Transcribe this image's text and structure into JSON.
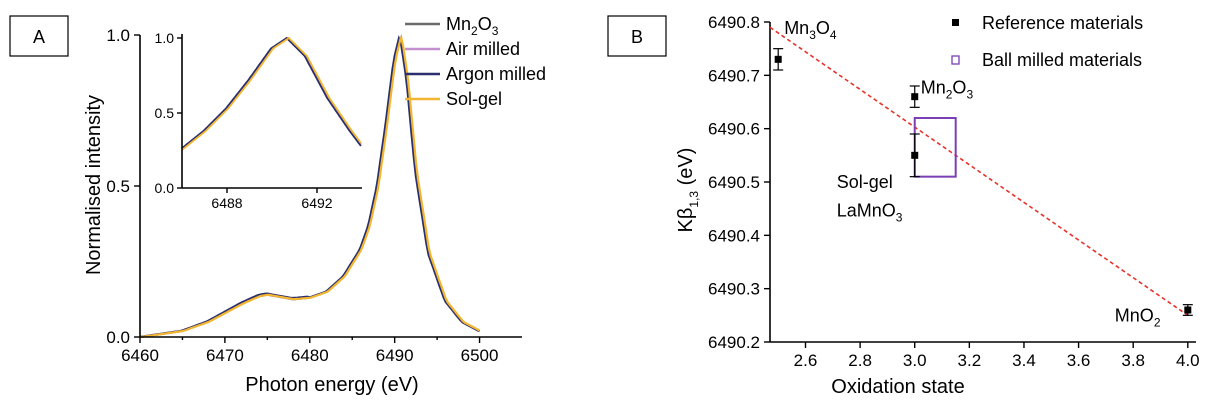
{
  "chart_data": [
    {
      "panel": "A",
      "type": "line",
      "xlabel": "Photon energy (eV)",
      "ylabel": "Normalised intensity",
      "xlim": [
        6460,
        6505
      ],
      "ylim": [
        0,
        1.0
      ],
      "xticks": [
        "6460",
        "6470",
        "6480",
        "6490",
        "6500"
      ],
      "yticks": [
        "0.0",
        "0.5",
        "1.0"
      ],
      "legend": "top-right",
      "series": [
        {
          "name": "Mn2O3",
          "label_main": "Mn",
          "label_sub1": "2",
          "label_mid": "O",
          "label_sub2": "3",
          "color": "#6b6b6b",
          "peak": 6490.7
        },
        {
          "name": "Air milled",
          "color": "#c38fcf",
          "peak": 6490.7
        },
        {
          "name": "Argon milled",
          "color": "#2a2f6e",
          "peak": 6490.6
        },
        {
          "name": "Sol-gel",
          "color": "#f2b630",
          "peak": 6490.8
        }
      ],
      "curve": {
        "x": [
          6460,
          6465,
          6468,
          6470,
          6472,
          6474,
          6475,
          6476,
          6478,
          6480,
          6482,
          6484,
          6486,
          6487,
          6488,
          6489,
          6490,
          6490.7,
          6491.5,
          6492.5,
          6494,
          6496,
          6498,
          6500
        ],
        "y": [
          0.0,
          0.02,
          0.05,
          0.08,
          0.11,
          0.135,
          0.14,
          0.135,
          0.125,
          0.13,
          0.15,
          0.2,
          0.29,
          0.37,
          0.5,
          0.7,
          0.92,
          1.0,
          0.85,
          0.55,
          0.28,
          0.12,
          0.05,
          0.02
        ]
      },
      "inset": {
        "xlim": [
          6486,
          6494
        ],
        "ylim": [
          0,
          1.0
        ],
        "xticks": [
          "6488",
          "6492"
        ],
        "yticks": [
          "0.0",
          "0.5",
          "1.0"
        ],
        "curve": {
          "x": [
            6486,
            6487,
            6488,
            6489,
            6490,
            6490.7,
            6491.5,
            6492.5,
            6493.5,
            6494
          ],
          "y": [
            0.26,
            0.38,
            0.53,
            0.72,
            0.93,
            1.0,
            0.88,
            0.6,
            0.38,
            0.28
          ]
        }
      }
    },
    {
      "panel": "B",
      "type": "scatter",
      "xlabel": "Oxidation state",
      "ylabel_main": "Kβ",
      "ylabel_sub": "1,3",
      "ylabel_tail": " (eV)",
      "xlim": [
        2.47,
        4.03
      ],
      "ylim": [
        6490.2,
        6490.8
      ],
      "xticks": [
        "2.6",
        "2.8",
        "3.0",
        "3.2",
        "3.4",
        "3.6",
        "3.8",
        "4.0"
      ],
      "yticks": [
        "6490.2",
        "6490.3",
        "6490.4",
        "6490.5",
        "6490.6",
        "6490.7",
        "6490.8"
      ],
      "legend": "top-right",
      "legend_entries": [
        "Reference materials",
        "Ball milled materials"
      ],
      "reference": [
        {
          "x": 2.5,
          "y": 6490.73,
          "err": 0.02
        },
        {
          "x": 3.0,
          "y": 6490.66,
          "err": 0.02
        },
        {
          "x": 3.0,
          "y": 6490.55,
          "err": 0.04
        },
        {
          "x": 4.0,
          "y": 6490.26,
          "err": 0.01
        }
      ],
      "ball_milled_box": {
        "x0": 3.0,
        "x1": 3.15,
        "y0": 6490.51,
        "y1": 6490.62
      },
      "fit_line": {
        "x": [
          2.47,
          4.0
        ],
        "y": [
          6490.79,
          6490.25
        ],
        "color": "#e8332a"
      },
      "annotations": [
        {
          "a": "Mn",
          "s1": "3",
          "b": "O",
          "s2": "4"
        },
        {
          "a": "Mn",
          "s1": "2",
          "b": "O",
          "s2": "3"
        },
        {
          "a": "Sol-gel"
        },
        {
          "a": "LaMnO",
          "s1": "3"
        },
        {
          "a": "MnO",
          "s1": "2"
        }
      ]
    }
  ],
  "labels": {
    "panel_a": "A",
    "panel_b": "B"
  }
}
